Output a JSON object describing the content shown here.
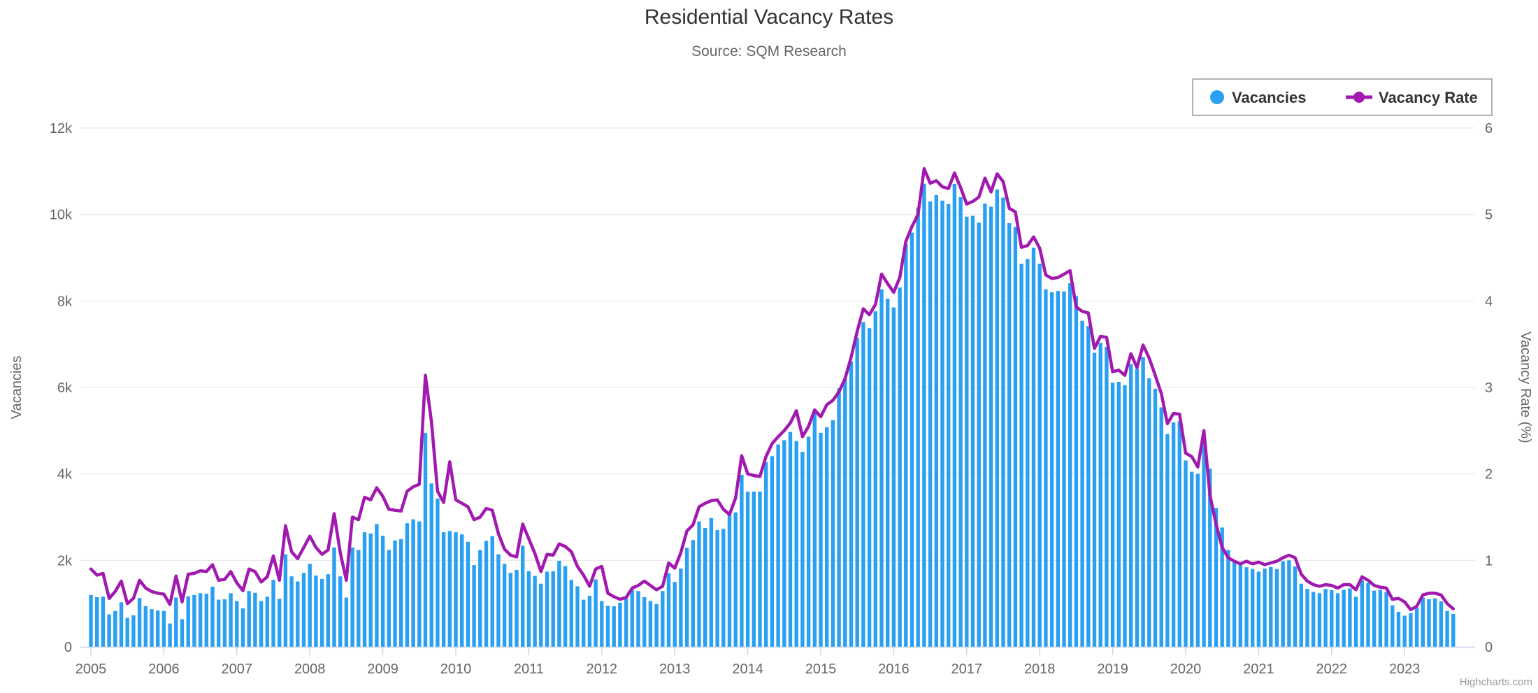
{
  "chart_data": {
    "type": "combo",
    "title": "Residential Vacancy Rates",
    "subtitle": "Source: SQM Research",
    "credits": "Highcharts.com",
    "frequency": "monthly",
    "x_start": "2005-01",
    "x_end": "2023-09",
    "x_ticks": [
      "2005",
      "2006",
      "2007",
      "2008",
      "2009",
      "2010",
      "2011",
      "2012",
      "2013",
      "2014",
      "2015",
      "2016",
      "2017",
      "2018",
      "2019",
      "2020",
      "2021",
      "2022",
      "2023"
    ],
    "yaxis_left": {
      "title": "Vacancies",
      "ticks": [
        "0",
        "2k",
        "4k",
        "6k",
        "8k",
        "10k",
        "12k"
      ],
      "min": 0,
      "max": 12000,
      "grid": true
    },
    "yaxis_right": {
      "title": "Vacancy Rate (%)",
      "ticks": [
        "0",
        "1",
        "2",
        "3",
        "4",
        "5",
        "6"
      ],
      "min": 0,
      "max": 6,
      "grid": false
    },
    "legend": {
      "position": "top-right",
      "border_color": "#999999"
    },
    "series": [
      {
        "name": "Vacancies",
        "type": "column",
        "color": "#2aa0f2",
        "axis": "left",
        "values": [
          1200,
          1150,
          1160,
          750,
          830,
          1030,
          670,
          730,
          1130,
          940,
          870,
          840,
          830,
          540,
          1140,
          640,
          1170,
          1200,
          1240,
          1230,
          1390,
          1090,
          1100,
          1240,
          1060,
          890,
          1290,
          1250,
          1060,
          1160,
          1550,
          1110,
          2140,
          1630,
          1510,
          1710,
          1920,
          1650,
          1570,
          1680,
          2300,
          1630,
          1140,
          2300,
          2240,
          2650,
          2620,
          2840,
          2570,
          2240,
          2460,
          2490,
          2860,
          2950,
          2900,
          4950,
          3780,
          3430,
          2650,
          2680,
          2650,
          2600,
          2430,
          1890,
          2240,
          2450,
          2560,
          2140,
          1920,
          1710,
          1780,
          2340,
          1750,
          1640,
          1460,
          1740,
          1750,
          1990,
          1870,
          1550,
          1400,
          1090,
          1180,
          1560,
          1060,
          950,
          940,
          1020,
          1110,
          1320,
          1290,
          1150,
          1060,
          990,
          1290,
          1700,
          1500,
          1810,
          2290,
          2470,
          2900,
          2750,
          2980,
          2700,
          2730,
          3060,
          3110,
          3980,
          3590,
          3590,
          3590,
          4270,
          4410,
          4680,
          4780,
          4970,
          4760,
          4510,
          4860,
          5460,
          4950,
          5080,
          5240,
          5980,
          6200,
          6600,
          7150,
          7510,
          7370,
          7760,
          8270,
          8050,
          7850,
          8310,
          9310,
          9580,
          10160,
          10710,
          10300,
          10450,
          10320,
          10240,
          10710,
          10400,
          9950,
          9970,
          9810,
          10250,
          10180,
          10580,
          10390,
          9800,
          9710,
          8860,
          8970,
          9230,
          8860,
          8270,
          8200,
          8230,
          8220,
          8410,
          8110,
          7540,
          7420,
          6800,
          7030,
          6940,
          6110,
          6130,
          6050,
          6540,
          6430,
          6700,
          6210,
          5970,
          5540,
          4920,
          5190,
          5220,
          4310,
          4050,
          4000,
          4740,
          4120,
          3210,
          2760,
          2240,
          2000,
          1920,
          1840,
          1800,
          1740,
          1810,
          1850,
          1800,
          1980,
          2000,
          1860,
          1460,
          1340,
          1270,
          1240,
          1340,
          1310,
          1240,
          1320,
          1350,
          1160,
          1540,
          1480,
          1300,
          1320,
          1270,
          960,
          810,
          720,
          780,
          900,
          1140,
          1100,
          1120,
          1050,
          830,
          760
        ]
      },
      {
        "name": "Vacancy Rate",
        "type": "line",
        "color": "#a119af",
        "axis": "right",
        "values": [
          0.9,
          0.83,
          0.85,
          0.56,
          0.64,
          0.76,
          0.5,
          0.56,
          0.77,
          0.68,
          0.64,
          0.62,
          0.61,
          0.49,
          0.82,
          0.52,
          0.84,
          0.85,
          0.88,
          0.87,
          0.95,
          0.77,
          0.78,
          0.87,
          0.74,
          0.65,
          0.9,
          0.87,
          0.75,
          0.81,
          1.05,
          0.77,
          1.4,
          1.1,
          1.02,
          1.15,
          1.28,
          1.15,
          1.07,
          1.12,
          1.54,
          1.09,
          0.77,
          1.5,
          1.47,
          1.73,
          1.7,
          1.84,
          1.74,
          1.59,
          1.58,
          1.57,
          1.8,
          1.85,
          1.88,
          3.14,
          2.6,
          1.8,
          1.67,
          2.14,
          1.7,
          1.66,
          1.62,
          1.47,
          1.5,
          1.6,
          1.58,
          1.31,
          1.13,
          1.06,
          1.04,
          1.42,
          1.25,
          1.08,
          0.87,
          1.07,
          1.06,
          1.19,
          1.16,
          1.1,
          0.93,
          0.83,
          0.7,
          0.9,
          0.93,
          0.62,
          0.58,
          0.55,
          0.57,
          0.68,
          0.71,
          0.76,
          0.71,
          0.66,
          0.7,
          0.97,
          0.91,
          1.09,
          1.34,
          1.41,
          1.62,
          1.66,
          1.69,
          1.7,
          1.59,
          1.53,
          1.72,
          2.21,
          2.0,
          1.98,
          1.97,
          2.2,
          2.35,
          2.43,
          2.5,
          2.59,
          2.73,
          2.43,
          2.55,
          2.74,
          2.66,
          2.8,
          2.85,
          2.95,
          3.1,
          3.35,
          3.65,
          3.91,
          3.84,
          3.96,
          4.31,
          4.2,
          4.1,
          4.27,
          4.69,
          4.86,
          5.0,
          5.53,
          5.36,
          5.39,
          5.32,
          5.3,
          5.48,
          5.31,
          5.12,
          5.15,
          5.2,
          5.42,
          5.26,
          5.47,
          5.38,
          5.07,
          5.03,
          4.62,
          4.64,
          4.74,
          4.61,
          4.3,
          4.26,
          4.27,
          4.31,
          4.35,
          3.93,
          3.88,
          3.86,
          3.45,
          3.59,
          3.58,
          3.18,
          3.2,
          3.14,
          3.39,
          3.23,
          3.49,
          3.34,
          3.14,
          2.93,
          2.58,
          2.7,
          2.69,
          2.24,
          2.2,
          2.08,
          2.5,
          1.75,
          1.42,
          1.15,
          1.03,
          0.99,
          0.96,
          0.99,
          0.96,
          0.98,
          0.95,
          0.97,
          0.99,
          1.03,
          1.06,
          1.03,
          0.84,
          0.76,
          0.72,
          0.7,
          0.72,
          0.71,
          0.68,
          0.72,
          0.72,
          0.66,
          0.81,
          0.77,
          0.71,
          0.69,
          0.68,
          0.55,
          0.56,
          0.52,
          0.43,
          0.47,
          0.6,
          0.62,
          0.62,
          0.6,
          0.5,
          0.44
        ]
      }
    ]
  },
  "colors": {
    "grid": "#e6e6e6",
    "axis_line": "#ccd6eb",
    "label": "#666666",
    "title": "#333333"
  }
}
